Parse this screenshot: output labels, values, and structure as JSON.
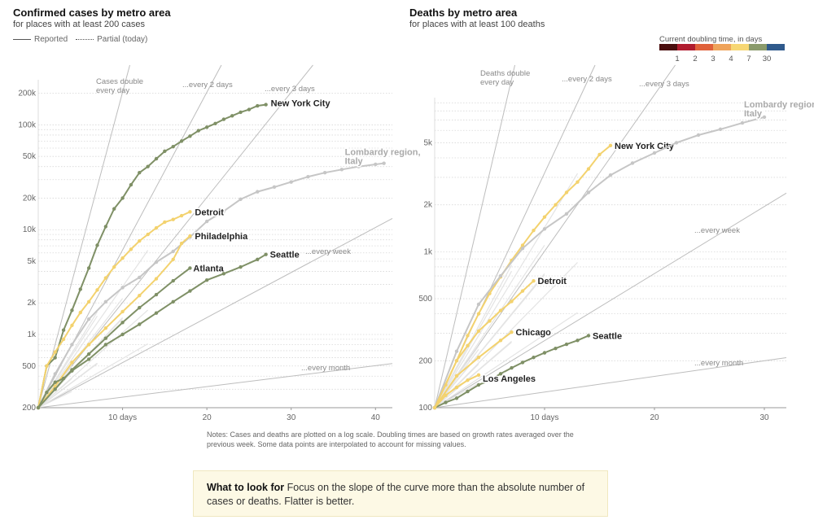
{
  "left": {
    "title": "Confirmed cases by metro area",
    "subtitle": "for places with at least 200 cases",
    "legend_reported": "Reported",
    "legend_partial": "Partial (today)"
  },
  "right": {
    "title": "Deaths by metro area",
    "subtitle": "for places with at least 100 deaths",
    "doubling_legend": {
      "title": "Current doubling time, in days",
      "colors": [
        "#4a0d0d",
        "#b01c2e",
        "#e0613a",
        "#efa35a",
        "#f7d774",
        "#8a9a6b",
        "#2f5a8c"
      ],
      "ticks": [
        "1",
        "2",
        "3",
        "4",
        "7",
        "30"
      ]
    }
  },
  "notes": "Notes: Cases and deaths are plotted on a log scale. Doubling times are based on growth rates averaged over the previous week. Some data points are interpolated to account for missing values.",
  "callout": {
    "heading": "What to look for",
    "text": "Focus on the slope of the curve more than the absolute number of cases or deaths. Flatter is better."
  },
  "chart_data": [
    {
      "type": "line",
      "title": "Confirmed cases by metro area",
      "subtitle": "for places with at least 200 cases",
      "xlabel": "",
      "y_scale": "log",
      "xlim": [
        0,
        42
      ],
      "ylim": [
        200,
        260000
      ],
      "x_ticks": [
        {
          "v": 10,
          "label": "10 days"
        },
        {
          "v": 20,
          "label": "20"
        },
        {
          "v": 30,
          "label": "30"
        },
        {
          "v": 40,
          "label": "40"
        }
      ],
      "y_ticks": [
        {
          "v": 200,
          "label": "200"
        },
        {
          "v": 500,
          "label": "500"
        },
        {
          "v": 1000,
          "label": "1k"
        },
        {
          "v": 2000,
          "label": "2k"
        },
        {
          "v": 5000,
          "label": "5k"
        },
        {
          "v": 10000,
          "label": "10k"
        },
        {
          "v": 20000,
          "label": "20k"
        },
        {
          "v": 50000,
          "label": "50k"
        },
        {
          "v": 100000,
          "label": "100k"
        },
        {
          "v": 200000,
          "label": "200k"
        }
      ],
      "reference_lines": [
        {
          "doubling_days": 1,
          "label": "Cases double\nevery day"
        },
        {
          "doubling_days": 2,
          "label": "...every 2 days"
        },
        {
          "doubling_days": 3,
          "label": "...every 3 days"
        },
        {
          "doubling_days": 7,
          "label": "...every week"
        },
        {
          "doubling_days": 30,
          "label": "...every month"
        }
      ],
      "series": [
        {
          "name": "New York City",
          "color": "#7f9066",
          "x": [
            0,
            1,
            2,
            3,
            4,
            5,
            6,
            7,
            8,
            9,
            10,
            11,
            12,
            13,
            14,
            15,
            16,
            17,
            18,
            19,
            20,
            21,
            22,
            23,
            24,
            25,
            26,
            27
          ],
          "y": [
            200,
            500,
            600,
            1100,
            1700,
            2700,
            4300,
            7100,
            10700,
            15800,
            20000,
            26800,
            35000,
            40000,
            47500,
            56000,
            62000,
            70000,
            78000,
            88000,
            95000,
            103000,
            113000,
            122000,
            132000,
            140000,
            152000,
            156000
          ]
        },
        {
          "name": "Lombardy region, Italy",
          "color": "#c6c6c6",
          "x": [
            0,
            2,
            4,
            6,
            8,
            10,
            12,
            14,
            16,
            18,
            20,
            22,
            24,
            26,
            28,
            30,
            32,
            34,
            36,
            38,
            40,
            41
          ],
          "y": [
            200,
            420,
            800,
            1400,
            2050,
            2800,
            3500,
            4900,
            6200,
            8500,
            12000,
            15000,
            19500,
            23000,
            25500,
            28500,
            32000,
            35000,
            37500,
            40000,
            42000,
            43000
          ]
        },
        {
          "name": "Detroit",
          "color": "#f3d26e",
          "x": [
            0,
            1,
            2,
            3,
            4,
            5,
            6,
            7,
            8,
            9,
            10,
            11,
            12,
            13,
            14,
            15,
            16,
            17,
            18
          ],
          "y": [
            200,
            500,
            680,
            900,
            1220,
            1620,
            2050,
            2660,
            3460,
            4400,
            5350,
            6500,
            7800,
            9000,
            10400,
            11800,
            12500,
            13600,
            14800
          ]
        },
        {
          "name": "Philadelphia",
          "color": "#f3d26e",
          "x": [
            0,
            2,
            4,
            6,
            8,
            10,
            12,
            14,
            16,
            17,
            18
          ],
          "y": [
            200,
            320,
            540,
            800,
            1150,
            1650,
            2350,
            3400,
            5200,
            7400,
            8700
          ]
        },
        {
          "name": "Atlanta",
          "color": "#7f9066",
          "x": [
            0,
            2,
            4,
            6,
            8,
            10,
            12,
            14,
            16,
            18
          ],
          "y": [
            200,
            300,
            460,
            650,
            920,
            1300,
            1800,
            2400,
            3250,
            4300
          ]
        },
        {
          "name": "Seattle",
          "color": "#7f9066",
          "x": [
            0,
            1,
            2,
            3,
            4,
            6,
            8,
            10,
            12,
            14,
            16,
            18,
            20,
            22,
            24,
            26,
            27
          ],
          "y": [
            200,
            280,
            350,
            380,
            450,
            580,
            800,
            1000,
            1250,
            1600,
            2050,
            2600,
            3300,
            3800,
            4400,
            5200,
            5800
          ]
        }
      ]
    },
    {
      "type": "line",
      "title": "Deaths by metro area",
      "subtitle": "for places with at least 100 deaths",
      "xlabel": "",
      "y_scale": "log",
      "xlim": [
        0,
        32
      ],
      "ylim": [
        100,
        9500
      ],
      "x_ticks": [
        {
          "v": 10,
          "label": "10 days"
        },
        {
          "v": 20,
          "label": "20"
        },
        {
          "v": 30,
          "label": "30"
        }
      ],
      "y_ticks": [
        {
          "v": 100,
          "label": "100"
        },
        {
          "v": 200,
          "label": "200"
        },
        {
          "v": 500,
          "label": "500"
        },
        {
          "v": 1000,
          "label": "1k"
        },
        {
          "v": 2000,
          "label": "2k"
        },
        {
          "v": 5000,
          "label": "5k"
        }
      ],
      "reference_lines": [
        {
          "doubling_days": 1,
          "label": "Deaths double\nevery day"
        },
        {
          "doubling_days": 2,
          "label": "...every 2 days"
        },
        {
          "doubling_days": 3,
          "label": "...every 3 days"
        },
        {
          "doubling_days": 7,
          "label": "...every week"
        },
        {
          "doubling_days": 30,
          "label": "...every month"
        }
      ],
      "series": [
        {
          "name": "New York City",
          "color": "#f3d26e",
          "x": [
            0,
            1,
            2,
            3,
            4,
            5,
            6,
            7,
            8,
            9,
            10,
            11,
            12,
            13,
            14,
            15,
            16
          ],
          "y": [
            100,
            140,
            200,
            290,
            400,
            540,
            690,
            880,
            1100,
            1370,
            1670,
            2000,
            2400,
            2800,
            3400,
            4200,
            4800
          ]
        },
        {
          "name": "Lombardy region, Italy",
          "color": "#c6c6c6",
          "x": [
            0,
            2,
            4,
            6,
            8,
            10,
            12,
            14,
            16,
            18,
            20,
            22,
            24,
            26,
            28,
            30
          ],
          "y": [
            100,
            230,
            460,
            700,
            1050,
            1400,
            1750,
            2400,
            3100,
            3700,
            4300,
            5000,
            5600,
            6100,
            6700,
            7300
          ]
        },
        {
          "name": "Detroit",
          "color": "#f3d26e",
          "x": [
            0,
            2,
            3,
            4,
            5,
            6,
            7,
            8,
            9
          ],
          "y": [
            100,
            200,
            250,
            310,
            360,
            420,
            480,
            560,
            650
          ]
        },
        {
          "name": "Chicago",
          "color": "#f3d26e",
          "x": [
            0,
            2,
            4,
            6,
            7
          ],
          "y": [
            100,
            160,
            210,
            270,
            305
          ]
        },
        {
          "name": "Seattle",
          "color": "#7f9066",
          "x": [
            0,
            1,
            2,
            3,
            4,
            5,
            6,
            7,
            8,
            9,
            10,
            11,
            12,
            13,
            14
          ],
          "y": [
            100,
            108,
            115,
            127,
            140,
            150,
            165,
            180,
            195,
            210,
            225,
            240,
            255,
            270,
            290
          ]
        },
        {
          "name": "Los Angeles",
          "color": "#f3d26e",
          "x": [
            0,
            1,
            2,
            3,
            4
          ],
          "y": [
            100,
            120,
            135,
            150,
            162
          ]
        }
      ]
    }
  ]
}
